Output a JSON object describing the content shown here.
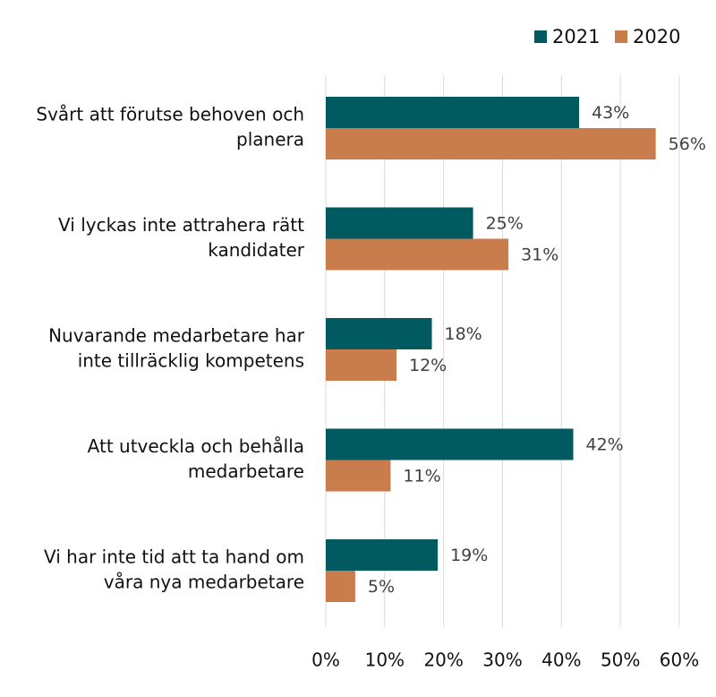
{
  "chart_data": {
    "type": "bar",
    "orientation": "horizontal",
    "categories": [
      "Svårt att förutse behoven och planera",
      "Vi lyckas inte attrahera rätt kandidater",
      "Nuvarande medarbetare har inte tillräcklig kompetens",
      "Att utveckla och behålla medarbetare",
      "Vi har inte tid att ta hand om våra nya medarbetare"
    ],
    "category_lines": [
      [
        "Svårt att förutse behoven och",
        "planera"
      ],
      [
        "Vi lyckas inte attrahera rätt",
        "kandidater"
      ],
      [
        "Nuvarande medarbetare har",
        "inte tillräcklig kompetens"
      ],
      [
        "Att utveckla och behålla",
        "medarbetare"
      ],
      [
        "Vi har inte tid att ta hand om",
        "våra nya medarbetare"
      ]
    ],
    "series": [
      {
        "name": "2021",
        "color": "#005a60",
        "values": [
          43,
          25,
          18,
          42,
          19
        ],
        "labels": [
          "43%",
          "25%",
          "18%",
          "42%",
          "19%"
        ]
      },
      {
        "name": "2020",
        "color": "#c97d4c",
        "values": [
          56,
          31,
          12,
          11,
          5
        ],
        "labels": [
          "56%",
          "31%",
          "12%",
          "11%",
          "5%"
        ]
      }
    ],
    "xlim": [
      0,
      60
    ],
    "x_ticks": [
      0,
      10,
      20,
      30,
      40,
      50,
      60
    ],
    "x_tick_labels": [
      "0%",
      "10%",
      "20%",
      "30%",
      "40%",
      "50%",
      "60%"
    ],
    "grid": "vertical",
    "legend_position": "top-right"
  }
}
